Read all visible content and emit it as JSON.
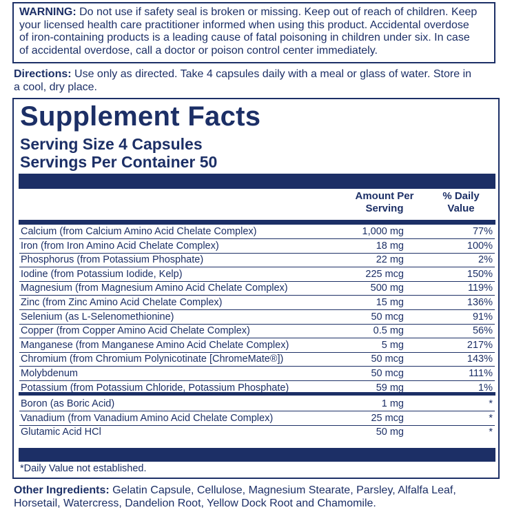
{
  "warning": {
    "label": "WARNING:",
    "line1": " Do not use if safety seal is broken or missing. Keep out of reach of children. Keep",
    "line2": "your licensed health care practitioner informed when using this product. Accidental overdose",
    "line3": "of iron-containing products is a leading cause of fatal poisoning in children under six. In case",
    "line4": "of accidental overdose, call a doctor or poison control center immediately."
  },
  "directions": {
    "label": "Directions:",
    "line1": " Use only as directed. Take 4 capsules daily with a meal or glass of water. Store in",
    "line2": "a cool, dry place."
  },
  "facts": {
    "title": "Supplement Facts",
    "serving_size": "Serving Size 4 Capsules",
    "servings_per_container": "Servings Per Container 50",
    "col_amount_1": "Amount Per",
    "col_amount_2": "Serving",
    "col_dv_1": "% Daily",
    "col_dv_2": "Value",
    "rows": [
      {
        "name": "Calcium (from Calcium Amino Acid Chelate Complex)",
        "amount": "1,000 mg",
        "dv": "77%"
      },
      {
        "name": "Iron (from Iron Amino Acid Chelate Complex)",
        "amount": "18 mg",
        "dv": "100%"
      },
      {
        "name": "Phosphorus (from Potassium Phosphate)",
        "amount": "22 mg",
        "dv": "2%"
      },
      {
        "name": "Iodine (from Potassium Iodide, Kelp)",
        "amount": "225 mcg",
        "dv": "150%"
      },
      {
        "name": "Magnesium (from Magnesium Amino Acid Chelate Complex)",
        "amount": "500 mg",
        "dv": "119%"
      },
      {
        "name": "Zinc (from Zinc Amino Acid Chelate Complex)",
        "amount": "15 mg",
        "dv": "136%"
      },
      {
        "name": "Selenium (as L-Selenomethionine)",
        "amount": "50 mcg",
        "dv": "91%"
      },
      {
        "name": "Copper (from Copper Amino Acid Chelate Complex)",
        "amount": "0.5 mg",
        "dv": "56%"
      },
      {
        "name": "Manganese (from Manganese Amino Acid Chelate Complex)",
        "amount": "5 mg",
        "dv": "217%"
      },
      {
        "name": "Chromium (from Chromium Polynicotinate [ChromeMate®])",
        "amount": "50 mcg",
        "dv": "143%"
      },
      {
        "name": "Molybdenum",
        "amount": "50 mcg",
        "dv": "111%"
      },
      {
        "name": "Potassium (from Potassium Chloride, Potassium Phosphate)",
        "amount": "59 mg",
        "dv": "1%"
      }
    ],
    "rows2": [
      {
        "name": "Boron (as Boric Acid)",
        "amount": "1 mg",
        "dv": "*"
      },
      {
        "name": "Vanadium (from Vanadium Amino Acid Chelate Complex)",
        "amount": "25 mcg",
        "dv": "*"
      },
      {
        "name": "Glutamic Acid HCl",
        "amount": "50 mg",
        "dv": "*"
      }
    ],
    "footnote": "*Daily Value not established."
  },
  "other_ingredients": {
    "label": "Other Ingredients:",
    "line1": " Gelatin Capsule, Cellulose, Magnesium Stearate, Parsley, Alfalfa Leaf,",
    "line2": "Horsetail, Watercress, Dandelion Root, Yellow Dock Root and Chamomile."
  },
  "colors": {
    "ink": "#1c2f66",
    "background": "#ffffff"
  }
}
